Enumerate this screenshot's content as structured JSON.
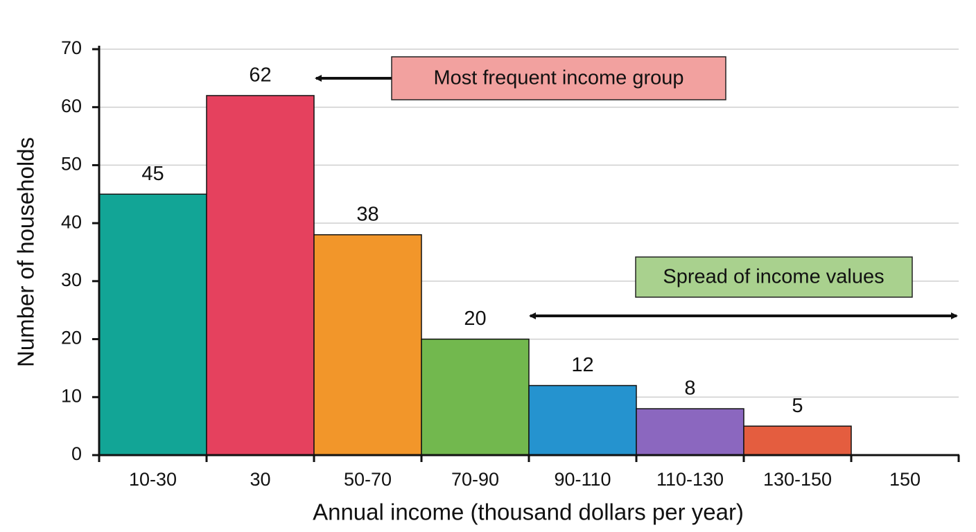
{
  "chart_data": {
    "type": "bar",
    "categories": [
      "10-30",
      "30",
      "50-70",
      "70-90",
      "90-110",
      "110-130",
      "130-150",
      "150"
    ],
    "values": [
      45,
      62,
      38,
      20,
      12,
      8,
      5,
      null
    ],
    "colors": [
      "#12a596",
      "#e5415e",
      "#f2962a",
      "#72b84e",
      "#2593cf",
      "#8b67bf",
      "#e45d3f"
    ],
    "xlabel": "Annual income (thousand dollars per year)",
    "ylabel": "Number of households",
    "ylim": [
      0,
      70
    ],
    "yticks": [
      0,
      10,
      20,
      30,
      40,
      50,
      60,
      70
    ],
    "grid": true,
    "annotations": [
      "Most frequent income group",
      "Spread of income values"
    ]
  }
}
